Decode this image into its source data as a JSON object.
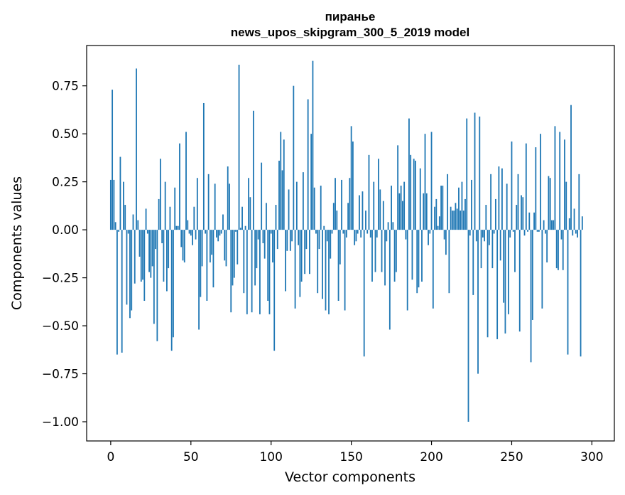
{
  "chart_data": {
    "type": "bar",
    "title_line1": "пиранье",
    "title_line2": "news_upos_skipgram_300_5_2019 model",
    "xlabel": "Vector components",
    "ylabel": "Components values",
    "xlim": [
      -15,
      314
    ],
    "ylim": [
      -1.1,
      0.96
    ],
    "x_ticks": [
      0,
      50,
      100,
      150,
      200,
      250,
      300
    ],
    "x_tick_labels": [
      "0",
      "50",
      "100",
      "150",
      "200",
      "250",
      "300"
    ],
    "y_ticks": [
      0.75,
      0.5,
      0.25,
      0.0,
      -0.25,
      -0.5,
      -0.75,
      -1.0
    ],
    "y_tick_labels": [
      "0.75",
      "0.50",
      "0.25",
      "0.00",
      "−0.25",
      "−0.50",
      "−0.75",
      "−1.00"
    ],
    "bar_color": "#1f77b4",
    "values": [
      0.26,
      0.73,
      0.26,
      0.04,
      -0.65,
      -0.01,
      0.38,
      -0.64,
      0.25,
      0.13,
      -0.39,
      -0.02,
      -0.46,
      -0.42,
      0.08,
      -0.28,
      0.84,
      0.05,
      -0.14,
      -0.27,
      -0.26,
      -0.37,
      0.11,
      -0.02,
      -0.22,
      -0.25,
      -0.19,
      -0.49,
      -0.1,
      -0.58,
      0.16,
      0.37,
      -0.07,
      -0.27,
      0.25,
      -0.32,
      -0.2,
      0.12,
      -0.63,
      -0.56,
      0.22,
      0.02,
      0.02,
      0.45,
      -0.09,
      -0.16,
      -0.17,
      0.51,
      0.05,
      -0.02,
      -0.03,
      -0.08,
      0.12,
      -0.05,
      0.27,
      -0.52,
      -0.35,
      -0.19,
      0.66,
      -0.02,
      -0.37,
      0.29,
      -0.17,
      -0.13,
      -0.3,
      0.24,
      -0.04,
      -0.06,
      -0.03,
      -0.02,
      0.08,
      -0.16,
      -0.19,
      0.33,
      0.24,
      -0.43,
      -0.29,
      -0.25,
      -0.01,
      -0.18,
      0.86,
      0.01,
      0.12,
      -0.33,
      0.02,
      -0.44,
      0.27,
      0.17,
      -0.43,
      0.62,
      -0.29,
      -0.2,
      -0.05,
      -0.44,
      0.35,
      -0.07,
      -0.15,
      0.14,
      -0.37,
      -0.44,
      -0.02,
      -0.17,
      -0.63,
      0.13,
      -0.1,
      0.36,
      0.51,
      0.31,
      0.47,
      -0.32,
      -0.11,
      0.21,
      -0.11,
      -0.06,
      0.75,
      -0.41,
      0.25,
      -0.08,
      -0.35,
      -0.27,
      0.3,
      -0.23,
      -0.1,
      0.68,
      -0.23,
      0.5,
      0.88,
      0.22,
      -0.02,
      -0.33,
      -0.1,
      0.23,
      -0.36,
      0.02,
      -0.42,
      -0.06,
      -0.44,
      -0.15,
      -0.02,
      0.14,
      0.27,
      0.1,
      -0.37,
      -0.18,
      0.26,
      -0.02,
      -0.42,
      -0.04,
      0.14,
      0.27,
      0.54,
      0.46,
      -0.08,
      -0.06,
      -0.02,
      0.18,
      -0.04,
      0.2,
      -0.66,
      0.1,
      -0.02,
      0.39,
      -0.04,
      -0.27,
      0.25,
      -0.22,
      -0.04,
      0.37,
      0.21,
      -0.22,
      0.15,
      -0.29,
      -0.06,
      0.04,
      -0.52,
      0.23,
      0.04,
      -0.27,
      -0.22,
      0.44,
      0.19,
      0.23,
      0.15,
      0.25,
      -0.05,
      -0.42,
      0.58,
      0.39,
      -0.26,
      0.37,
      0.36,
      -0.33,
      -0.3,
      0.32,
      -0.27,
      0.19,
      0.5,
      0.19,
      -0.08,
      -0.02,
      0.51,
      -0.41,
      0.12,
      0.16,
      0.02,
      0.07,
      0.23,
      0.23,
      -0.05,
      -0.13,
      0.29,
      -0.33,
      0.12,
      0.1,
      0.1,
      0.14,
      0.11,
      0.22,
      0.1,
      0.25,
      0.1,
      0.16,
      0.58,
      -1.0,
      -0.03,
      0.26,
      -0.34,
      0.61,
      -0.06,
      -0.75,
      0.59,
      -0.2,
      -0.04,
      -0.06,
      0.13,
      -0.56,
      -0.08,
      0.29,
      -0.2,
      -0.02,
      0.16,
      -0.57,
      0.33,
      -0.16,
      0.32,
      -0.38,
      -0.54,
      0.24,
      -0.44,
      -0.04,
      0.46,
      -0.01,
      -0.22,
      0.13,
      0.29,
      -0.53,
      0.18,
      0.17,
      -0.03,
      0.45,
      -0.01,
      0.09,
      -0.69,
      -0.47,
      0.09,
      0.43,
      -0.01,
      -0.01,
      0.5,
      -0.41,
      0.05,
      -0.02,
      -0.17,
      0.28,
      0.27,
      0.05,
      0.05,
      0.54,
      -0.2,
      -0.21,
      0.51,
      -0.05,
      -0.21,
      0.47,
      0.25,
      -0.65,
      0.06,
      0.65,
      -0.03,
      0.11,
      -0.02,
      -0.04,
      0.29,
      -0.66,
      0.07
    ]
  }
}
